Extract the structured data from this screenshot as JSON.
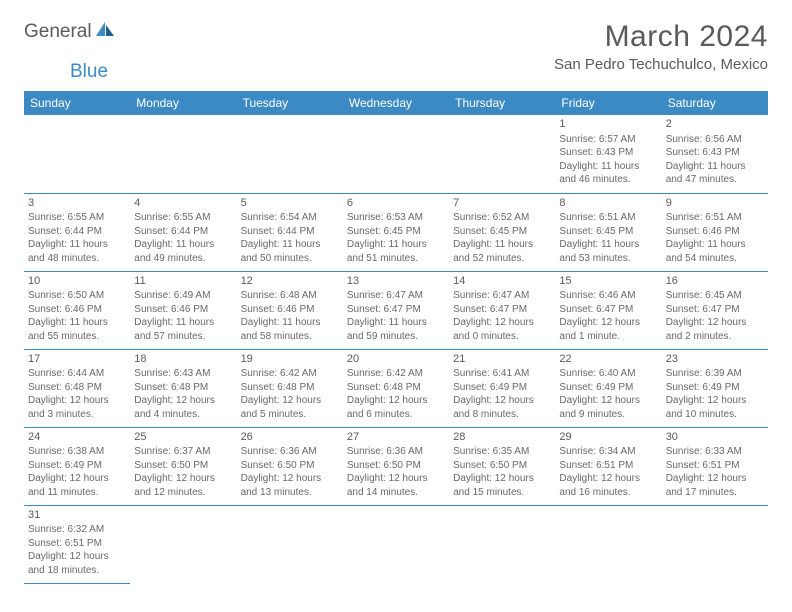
{
  "logo": {
    "text1": "General",
    "text2": "Blue"
  },
  "title": "March 2024",
  "location": "San Pedro Techuchulco, Mexico",
  "colors": {
    "headerBg": "#3b8ac4",
    "headerText": "#ffffff",
    "rowDivider": "#3b8ac4",
    "cellTop": "#d0d0d0",
    "bodyText": "#696969"
  },
  "weekdays": [
    "Sunday",
    "Monday",
    "Tuesday",
    "Wednesday",
    "Thursday",
    "Friday",
    "Saturday"
  ],
  "weeks": [
    [
      null,
      null,
      null,
      null,
      null,
      {
        "n": "1",
        "sr": "6:57 AM",
        "ss": "6:43 PM",
        "dl": "11 hours and 46 minutes."
      },
      {
        "n": "2",
        "sr": "6:56 AM",
        "ss": "6:43 PM",
        "dl": "11 hours and 47 minutes."
      }
    ],
    [
      {
        "n": "3",
        "sr": "6:55 AM",
        "ss": "6:44 PM",
        "dl": "11 hours and 48 minutes."
      },
      {
        "n": "4",
        "sr": "6:55 AM",
        "ss": "6:44 PM",
        "dl": "11 hours and 49 minutes."
      },
      {
        "n": "5",
        "sr": "6:54 AM",
        "ss": "6:44 PM",
        "dl": "11 hours and 50 minutes."
      },
      {
        "n": "6",
        "sr": "6:53 AM",
        "ss": "6:45 PM",
        "dl": "11 hours and 51 minutes."
      },
      {
        "n": "7",
        "sr": "6:52 AM",
        "ss": "6:45 PM",
        "dl": "11 hours and 52 minutes."
      },
      {
        "n": "8",
        "sr": "6:51 AM",
        "ss": "6:45 PM",
        "dl": "11 hours and 53 minutes."
      },
      {
        "n": "9",
        "sr": "6:51 AM",
        "ss": "6:46 PM",
        "dl": "11 hours and 54 minutes."
      }
    ],
    [
      {
        "n": "10",
        "sr": "6:50 AM",
        "ss": "6:46 PM",
        "dl": "11 hours and 55 minutes."
      },
      {
        "n": "11",
        "sr": "6:49 AM",
        "ss": "6:46 PM",
        "dl": "11 hours and 57 minutes."
      },
      {
        "n": "12",
        "sr": "6:48 AM",
        "ss": "6:46 PM",
        "dl": "11 hours and 58 minutes."
      },
      {
        "n": "13",
        "sr": "6:47 AM",
        "ss": "6:47 PM",
        "dl": "11 hours and 59 minutes."
      },
      {
        "n": "14",
        "sr": "6:47 AM",
        "ss": "6:47 PM",
        "dl": "12 hours and 0 minutes."
      },
      {
        "n": "15",
        "sr": "6:46 AM",
        "ss": "6:47 PM",
        "dl": "12 hours and 1 minute."
      },
      {
        "n": "16",
        "sr": "6:45 AM",
        "ss": "6:47 PM",
        "dl": "12 hours and 2 minutes."
      }
    ],
    [
      {
        "n": "17",
        "sr": "6:44 AM",
        "ss": "6:48 PM",
        "dl": "12 hours and 3 minutes."
      },
      {
        "n": "18",
        "sr": "6:43 AM",
        "ss": "6:48 PM",
        "dl": "12 hours and 4 minutes."
      },
      {
        "n": "19",
        "sr": "6:42 AM",
        "ss": "6:48 PM",
        "dl": "12 hours and 5 minutes."
      },
      {
        "n": "20",
        "sr": "6:42 AM",
        "ss": "6:48 PM",
        "dl": "12 hours and 6 minutes."
      },
      {
        "n": "21",
        "sr": "6:41 AM",
        "ss": "6:49 PM",
        "dl": "12 hours and 8 minutes."
      },
      {
        "n": "22",
        "sr": "6:40 AM",
        "ss": "6:49 PM",
        "dl": "12 hours and 9 minutes."
      },
      {
        "n": "23",
        "sr": "6:39 AM",
        "ss": "6:49 PM",
        "dl": "12 hours and 10 minutes."
      }
    ],
    [
      {
        "n": "24",
        "sr": "6:38 AM",
        "ss": "6:49 PM",
        "dl": "12 hours and 11 minutes."
      },
      {
        "n": "25",
        "sr": "6:37 AM",
        "ss": "6:50 PM",
        "dl": "12 hours and 12 minutes."
      },
      {
        "n": "26",
        "sr": "6:36 AM",
        "ss": "6:50 PM",
        "dl": "12 hours and 13 minutes."
      },
      {
        "n": "27",
        "sr": "6:36 AM",
        "ss": "6:50 PM",
        "dl": "12 hours and 14 minutes."
      },
      {
        "n": "28",
        "sr": "6:35 AM",
        "ss": "6:50 PM",
        "dl": "12 hours and 15 minutes."
      },
      {
        "n": "29",
        "sr": "6:34 AM",
        "ss": "6:51 PM",
        "dl": "12 hours and 16 minutes."
      },
      {
        "n": "30",
        "sr": "6:33 AM",
        "ss": "6:51 PM",
        "dl": "12 hours and 17 minutes."
      }
    ],
    [
      {
        "n": "31",
        "sr": "6:32 AM",
        "ss": "6:51 PM",
        "dl": "12 hours and 18 minutes."
      },
      null,
      null,
      null,
      null,
      null,
      null
    ]
  ],
  "labels": {
    "sunrise": "Sunrise: ",
    "sunset": "Sunset: ",
    "daylight": "Daylight: "
  }
}
